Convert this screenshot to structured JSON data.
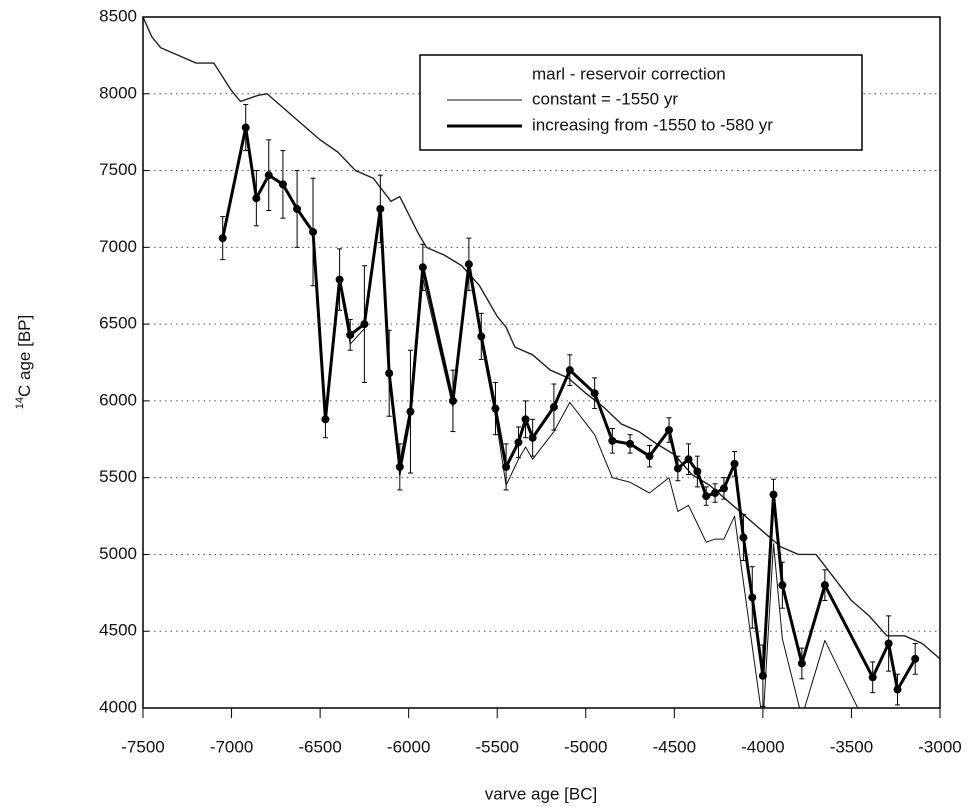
{
  "chart_data": {
    "type": "line",
    "xlabel": "varve age [BC]",
    "ylabel_sup": "14",
    "ylabel": "C age [BP]",
    "legend_title": "marl - reservoir correction",
    "legend": "top-right",
    "grid": true,
    "xlim": [
      -7500,
      -3000
    ],
    "xticks": [
      -7500,
      -7000,
      -6500,
      -6000,
      -5500,
      -5000,
      -4500,
      -4000,
      -3500,
      -3000
    ],
    "ylim": [
      4000,
      8500
    ],
    "yticks": [
      4000,
      4500,
      5000,
      5500,
      6000,
      6500,
      7000,
      7500,
      8000,
      8500
    ],
    "series": [
      {
        "color": "#222",
        "width": 1.4,
        "markers": false,
        "x": [
          -7500,
          -7450,
          -7400,
          -7300,
          -7200,
          -7100,
          -7000,
          -6950,
          -6850,
          -6800,
          -6700,
          -6600,
          -6500,
          -6400,
          -6300,
          -6200,
          -6100,
          -6050,
          -5950,
          -5900,
          -5800,
          -5700,
          -5600,
          -5500,
          -5450,
          -5400,
          -5300,
          -5200,
          -5100,
          -5000,
          -4900,
          -4800,
          -4700,
          -4600,
          -4500,
          -4400,
          -4300,
          -4200,
          -4100,
          -4000,
          -3900,
          -3800,
          -3700,
          -3600,
          -3500,
          -3400,
          -3300,
          -3200,
          -3100,
          -3000
        ],
        "values": [
          8500,
          8370,
          8300,
          8250,
          8200,
          8200,
          8020,
          7950,
          7990,
          8000,
          7900,
          7800,
          7700,
          7620,
          7500,
          7450,
          7300,
          7330,
          7100,
          7000,
          6950,
          6880,
          6750,
          6550,
          6480,
          6350,
          6300,
          6200,
          6150,
          6050,
          5960,
          5850,
          5800,
          5720,
          5650,
          5520,
          5450,
          5350,
          5250,
          5150,
          5050,
          5000,
          5000,
          4850,
          4700,
          4600,
          4470,
          4470,
          4420,
          4320
        ]
      },
      {
        "name": "constant = -1550 yr",
        "color": "#111",
        "width": 1,
        "markers": false,
        "x": [
          -7050,
          -6920,
          -6860,
          -6790,
          -6710,
          -6630,
          -6540,
          -6470,
          -6390,
          -6330,
          -6250,
          -6160,
          -6110,
          -6050,
          -5990,
          -5920,
          -5750,
          -5660,
          -5590,
          -5510,
          -5450,
          -5380,
          -5340,
          -5300,
          -5180,
          -5090,
          -4950,
          -4850,
          -4750,
          -4640,
          -4530,
          -4480,
          -4420,
          -4370,
          -4320,
          -4270,
          -4220,
          -4160,
          -4110,
          -4060,
          -4000,
          -3940,
          -3890,
          -3780,
          -3650,
          -3380
        ],
        "values": [
          7060,
          7780,
          7320,
          7470,
          7410,
          7250,
          7100,
          5880,
          6760,
          6370,
          6470,
          7220,
          6130,
          5510,
          5880,
          6800,
          5960,
          6850,
          6380,
          5900,
          5450,
          5620,
          5700,
          5620,
          5800,
          5990,
          5780,
          5500,
          5470,
          5400,
          5500,
          5280,
          5320,
          5200,
          5080,
          5100,
          5100,
          5250,
          4820,
          4400,
          3900,
          5070,
          4450,
          3940,
          4440,
          3800
        ]
      },
      {
        "name": "increasing from -1550 to -580 yr",
        "color": "#000",
        "width": 3,
        "markers": true,
        "x": [
          -7050,
          -6920,
          -6860,
          -6790,
          -6710,
          -6630,
          -6540,
          -6470,
          -6390,
          -6330,
          -6250,
          -6160,
          -6110,
          -6050,
          -5990,
          -5920,
          -5750,
          -5660,
          -5590,
          -5510,
          -5450,
          -5380,
          -5340,
          -5300,
          -5180,
          -5090,
          -4950,
          -4850,
          -4750,
          -4640,
          -4530,
          -4480,
          -4420,
          -4370,
          -4320,
          -4270,
          -4220,
          -4160,
          -4110,
          -4060,
          -4000,
          -3940,
          -3890,
          -3780,
          -3650,
          -3380,
          -3290,
          -3240,
          -3140
        ],
        "values": [
          7060,
          7780,
          7320,
          7470,
          7410,
          7250,
          7100,
          5880,
          6790,
          6430,
          6500,
          7250,
          6180,
          5570,
          5930,
          6870,
          6000,
          6890,
          6420,
          5950,
          5570,
          5730,
          5880,
          5760,
          5960,
          6200,
          6050,
          5740,
          5720,
          5640,
          5810,
          5560,
          5620,
          5540,
          5380,
          5400,
          5430,
          5590,
          5110,
          4720,
          4210,
          5390,
          4800,
          4290,
          4800,
          4200,
          4420,
          4120,
          4320
        ],
        "errors": [
          140,
          150,
          180,
          230,
          220,
          250,
          350,
          120,
          200,
          100,
          380,
          220,
          280,
          150,
          400,
          150,
          200,
          170,
          150,
          170,
          150,
          100,
          120,
          120,
          150,
          100,
          100,
          80,
          60,
          70,
          80,
          80,
          100,
          100,
          60,
          60,
          70,
          80,
          150,
          200,
          200,
          100,
          150,
          100,
          100,
          100,
          180,
          100,
          100
        ]
      }
    ]
  }
}
